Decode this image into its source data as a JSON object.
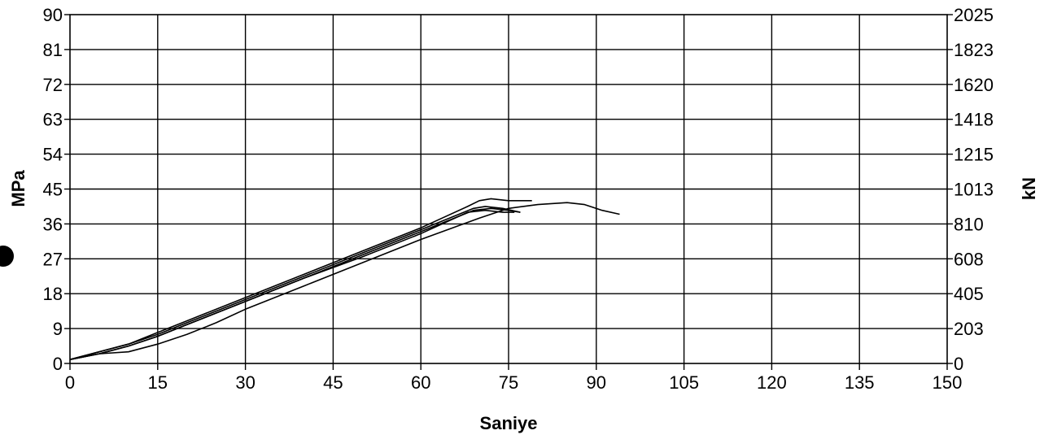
{
  "chart_data": {
    "type": "line",
    "xlabel": "Saniye",
    "ylabel": "MPa",
    "y2label": "kN",
    "xlim": [
      0,
      150
    ],
    "ylim": [
      0,
      90
    ],
    "y2lim": [
      0,
      2025
    ],
    "grid": true,
    "xticks": [
      "0",
      "15",
      "30",
      "45",
      "60",
      "75",
      "90",
      "105",
      "120",
      "135",
      "150"
    ],
    "yticks": [
      "0",
      "9",
      "18",
      "27",
      "36",
      "45",
      "54",
      "63",
      "72",
      "81",
      "90"
    ],
    "y2ticks": [
      "0",
      "203",
      "405",
      "608",
      "810",
      "1013",
      "1215",
      "1418",
      "1620",
      "1823",
      "2025"
    ],
    "line_color": "#000000",
    "series": [
      {
        "x": [
          0,
          5,
          10,
          15,
          20,
          30,
          40,
          50,
          60,
          68,
          70,
          72,
          75,
          79
        ],
        "y": [
          1,
          3,
          5,
          8,
          11,
          17,
          23,
          29,
          35,
          40.5,
          42,
          42.5,
          42,
          42
        ]
      },
      {
        "x": [
          0,
          5,
          10,
          15,
          20,
          30,
          40,
          50,
          60,
          69,
          71,
          74,
          77
        ],
        "y": [
          1,
          3,
          5,
          7.5,
          10.5,
          16.5,
          22.5,
          28.5,
          34.5,
          40,
          40.5,
          40,
          39
        ]
      },
      {
        "x": [
          0,
          5,
          10,
          15,
          20,
          30,
          40,
          50,
          60,
          69,
          72,
          75,
          77
        ],
        "y": [
          1,
          2.5,
          4.5,
          7,
          10,
          16,
          22,
          28,
          34,
          39.5,
          40,
          39.5,
          39
        ]
      },
      {
        "x": [
          0,
          5,
          10,
          15,
          20,
          30,
          40,
          50,
          60,
          68,
          71,
          74,
          76
        ],
        "y": [
          1,
          2.5,
          4.5,
          7,
          10,
          16,
          22,
          27.5,
          33.5,
          39,
          39.5,
          39,
          39
        ]
      },
      {
        "x": [
          0,
          5,
          10,
          15,
          20,
          25,
          30,
          40,
          50,
          60,
          70,
          75,
          80,
          85,
          88,
          91,
          94
        ],
        "y": [
          1,
          2.5,
          3,
          5,
          7.5,
          10.5,
          14,
          20,
          26,
          32,
          37.5,
          40,
          41,
          41.5,
          41,
          39.5,
          38.5
        ]
      }
    ]
  }
}
